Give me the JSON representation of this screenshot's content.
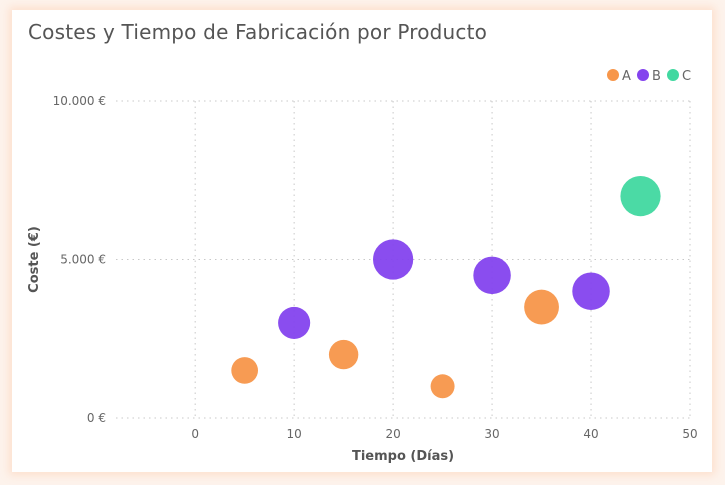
{
  "chart_data": {
    "type": "scatter",
    "title": "Costes y Tiempo de Fabricación por Producto",
    "xlabel": "Tiempo (Días)",
    "ylabel": "Coste (€)",
    "xlim": [
      -8,
      50
    ],
    "ylim": [
      0,
      10000
    ],
    "x_ticks": [
      0,
      10,
      20,
      30,
      40,
      50
    ],
    "y_ticks": [
      0,
      5000,
      10000
    ],
    "y_tick_labels": [
      "0 €",
      "5.000 €",
      "10.000 €"
    ],
    "grid": true,
    "legend_position": "top-right",
    "series": [
      {
        "name": "A",
        "color": "#f7964a",
        "points": [
          {
            "x": 5,
            "y": 1500,
            "size": 1.5
          },
          {
            "x": 15,
            "y": 2000,
            "size": 2
          },
          {
            "x": 25,
            "y": 1000,
            "size": 1
          },
          {
            "x": 35,
            "y": 3500,
            "size": 3
          }
        ]
      },
      {
        "name": "B",
        "color": "#8443ee",
        "points": [
          {
            "x": 10,
            "y": 3000,
            "size": 2.5
          },
          {
            "x": 20,
            "y": 5000,
            "size": 4
          },
          {
            "x": 30,
            "y": 4500,
            "size": 3.5
          },
          {
            "x": 40,
            "y": 4000,
            "size": 3.5
          }
        ]
      },
      {
        "name": "C",
        "color": "#41d8a0",
        "points": [
          {
            "x": 45,
            "y": 7000,
            "size": 4
          }
        ]
      }
    ]
  }
}
